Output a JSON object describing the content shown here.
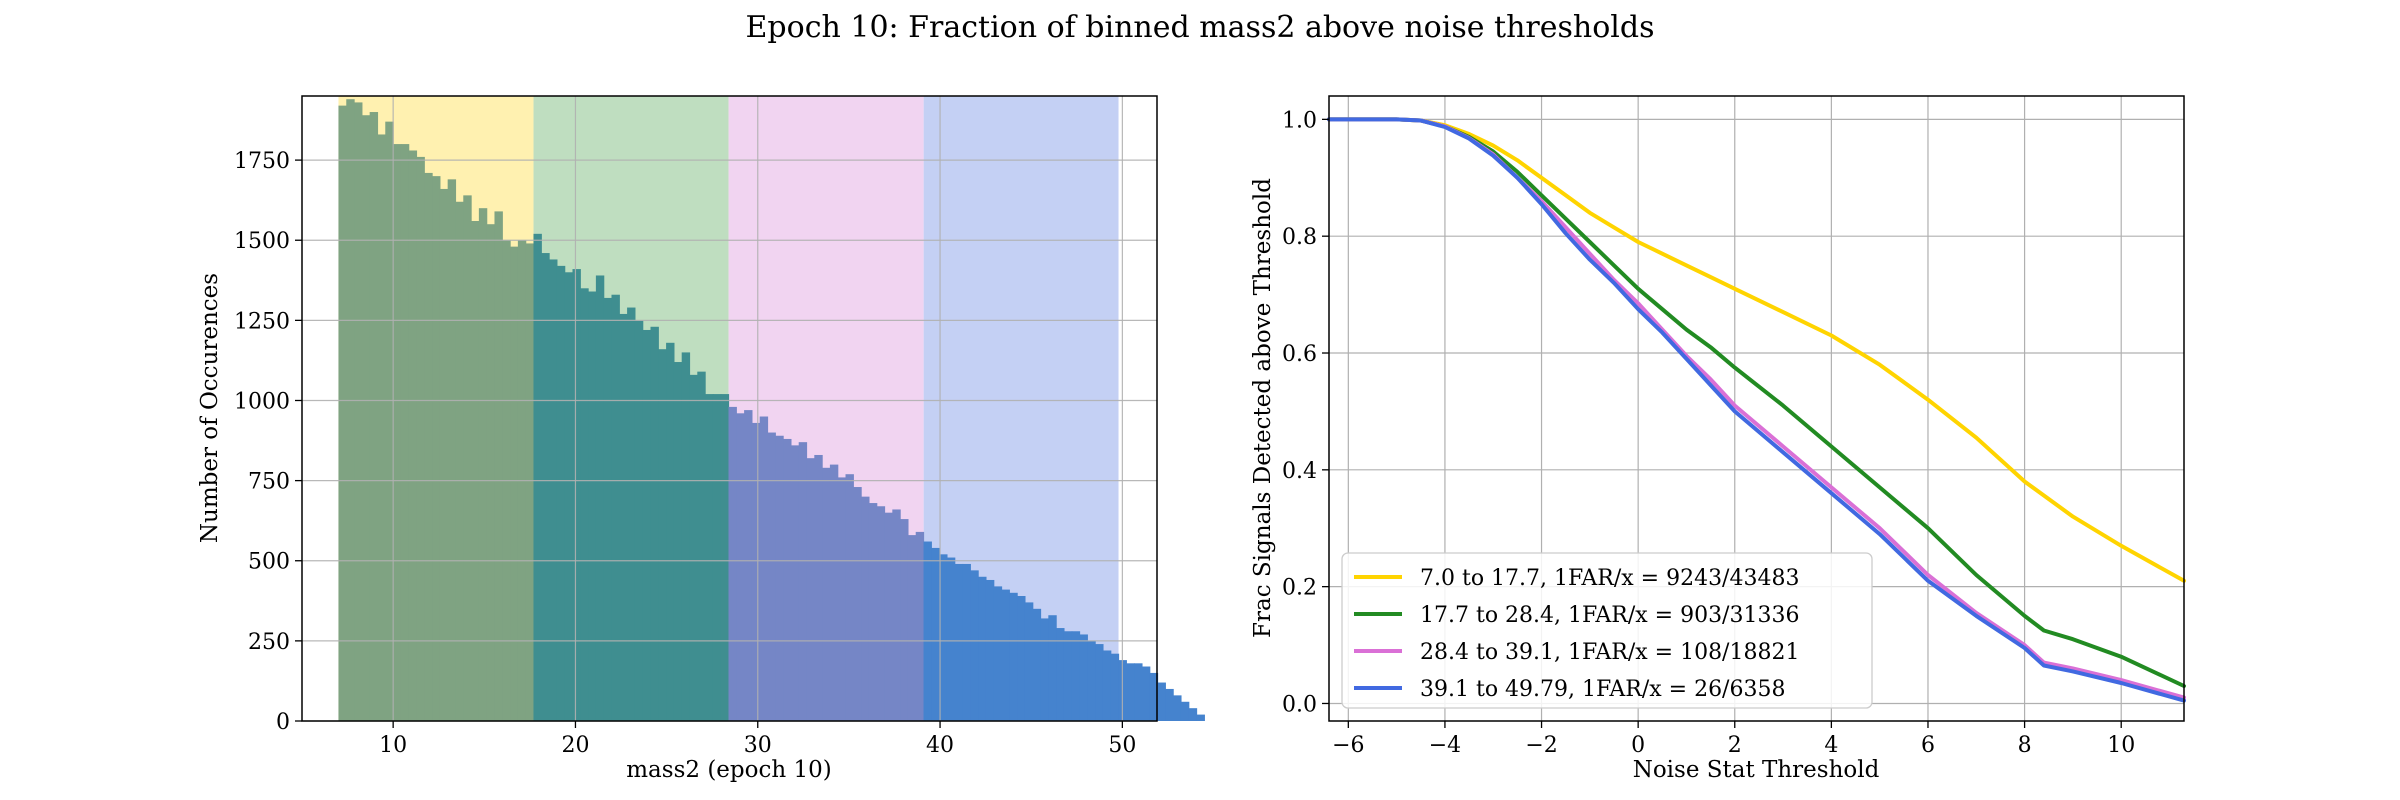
{
  "figure": {
    "title": "Epoch 10: Fraction of binned mass2 above noise thresholds"
  },
  "chart_data": [
    {
      "type": "bar",
      "subtype": "histogram",
      "title": "",
      "xlabel": "mass2 (epoch 10)",
      "ylabel": "Number of Occurences",
      "xlim": [
        5.0,
        51.9
      ],
      "ylim": [
        0,
        1950
      ],
      "xticks": [
        10,
        20,
        30,
        40,
        50
      ],
      "yticks": [
        0,
        250,
        500,
        750,
        1000,
        1250,
        1500,
        1750
      ],
      "grid": true,
      "bin_start": 7.0,
      "bin_width": 0.4279,
      "values": [
        1920,
        1940,
        1930,
        1890,
        1900,
        1830,
        1870,
        1800,
        1800,
        1780,
        1760,
        1710,
        1700,
        1660,
        1690,
        1620,
        1640,
        1560,
        1600,
        1550,
        1590,
        1500,
        1480,
        1500,
        1490,
        1520,
        1460,
        1440,
        1420,
        1400,
        1410,
        1350,
        1340,
        1390,
        1320,
        1330,
        1270,
        1290,
        1250,
        1220,
        1230,
        1160,
        1180,
        1120,
        1150,
        1080,
        1090,
        1020,
        1020,
        1020,
        980,
        960,
        970,
        930,
        950,
        900,
        890,
        880,
        860,
        870,
        820,
        830,
        790,
        800,
        760,
        770,
        730,
        700,
        680,
        670,
        650,
        660,
        630,
        580,
        590,
        560,
        540,
        520,
        510,
        490,
        490,
        470,
        450,
        440,
        420,
        410,
        400,
        390,
        370,
        350,
        320,
        330,
        290,
        280,
        280,
        270,
        250,
        240,
        220,
        210,
        190,
        180,
        180,
        170,
        150,
        120,
        100,
        80,
        60,
        40,
        20
      ],
      "value_colors": [
        "#7fa382",
        "#3f8e90",
        "#7586c6",
        "#4583ce"
      ],
      "bands": [
        {
          "from": 7.0,
          "to": 17.7,
          "color": "#fff1b0"
        },
        {
          "from": 17.7,
          "to": 28.4,
          "color": "#bfdec0"
        },
        {
          "from": 28.4,
          "to": 39.1,
          "color": "#f1d4f1"
        },
        {
          "from": 39.1,
          "to": 49.79,
          "color": "#c4d0f4"
        }
      ]
    },
    {
      "type": "line",
      "title": "",
      "xlabel": "Noise Stat Threshold",
      "ylabel": "Frac Signals Detected above Threshold",
      "xlim": [
        -6.4,
        11.3
      ],
      "ylim": [
        -0.03,
        1.04
      ],
      "xticks": [
        -6,
        -4,
        -2,
        0,
        2,
        4,
        6,
        8,
        10
      ],
      "yticks": [
        0.0,
        0.2,
        0.4,
        0.6,
        0.8,
        1.0
      ],
      "xtick_labels": [
        "−6",
        "−4",
        "−2",
        "0",
        "2",
        "4",
        "6",
        "8",
        "10"
      ],
      "ytick_labels": [
        "0.0",
        "0.2",
        "0.4",
        "0.6",
        "0.8",
        "1.0"
      ],
      "grid": true,
      "legend_position": "lower-left",
      "series": [
        {
          "name": "7.0 to 17.7, 1FAR/x = 9243/43483",
          "color": "#ffd400",
          "x": [
            -6.4,
            -5,
            -4.5,
            -4,
            -3.5,
            -3,
            -2.5,
            -2,
            -1.5,
            -1,
            -0.5,
            0,
            0.5,
            1,
            1.5,
            2,
            3,
            4,
            5,
            6,
            7,
            8,
            9,
            10,
            11.3
          ],
          "y": [
            1.0,
            1.0,
            0.998,
            0.99,
            0.975,
            0.955,
            0.93,
            0.9,
            0.87,
            0.84,
            0.815,
            0.79,
            0.77,
            0.75,
            0.73,
            0.71,
            0.67,
            0.63,
            0.58,
            0.52,
            0.455,
            0.38,
            0.32,
            0.27,
            0.21
          ]
        },
        {
          "name": "17.7 to 28.4, 1FAR/x = 903/31336",
          "color": "#228b22",
          "x": [
            -6.4,
            -5,
            -4.5,
            -4,
            -3.5,
            -3,
            -2.5,
            -2,
            -1.5,
            -1,
            -0.5,
            0,
            0.5,
            1,
            1.5,
            2,
            3,
            4,
            5,
            6,
            7,
            8,
            8.4,
            9,
            10,
            11.3
          ],
          "y": [
            1.0,
            1.0,
            0.998,
            0.988,
            0.97,
            0.945,
            0.91,
            0.87,
            0.83,
            0.79,
            0.75,
            0.71,
            0.675,
            0.64,
            0.61,
            0.575,
            0.51,
            0.44,
            0.37,
            0.3,
            0.22,
            0.15,
            0.125,
            0.11,
            0.08,
            0.03
          ]
        },
        {
          "name": "28.4 to 39.1, 1FAR/x = 108/18821",
          "color": "#da70d6",
          "x": [
            -6.4,
            -5,
            -4.5,
            -4,
            -3.5,
            -3,
            -2.5,
            -2,
            -1.5,
            -1,
            -0.5,
            0,
            0.5,
            1,
            1.5,
            2,
            3,
            4,
            5,
            6,
            7,
            8,
            8.4,
            9,
            10,
            11.3
          ],
          "y": [
            1.0,
            1.0,
            0.998,
            0.988,
            0.968,
            0.94,
            0.9,
            0.86,
            0.815,
            0.77,
            0.725,
            0.685,
            0.64,
            0.595,
            0.555,
            0.51,
            0.44,
            0.37,
            0.3,
            0.22,
            0.155,
            0.1,
            0.07,
            0.06,
            0.04,
            0.01
          ]
        },
        {
          "name": "39.1 to 49.79, 1FAR/x = 26/6358",
          "color": "#4169e1",
          "x": [
            -6.4,
            -5,
            -4.5,
            -4,
            -3.5,
            -3,
            -2.5,
            -2,
            -1.5,
            -1,
            -0.5,
            0,
            0.5,
            1,
            1.5,
            2,
            3,
            4,
            5,
            6,
            7,
            8,
            8.4,
            9,
            10,
            11.3
          ],
          "y": [
            1.0,
            1.0,
            0.998,
            0.987,
            0.967,
            0.938,
            0.9,
            0.855,
            0.805,
            0.76,
            0.72,
            0.675,
            0.635,
            0.59,
            0.545,
            0.5,
            0.43,
            0.36,
            0.29,
            0.21,
            0.15,
            0.095,
            0.065,
            0.055,
            0.035,
            0.005
          ]
        }
      ]
    }
  ]
}
